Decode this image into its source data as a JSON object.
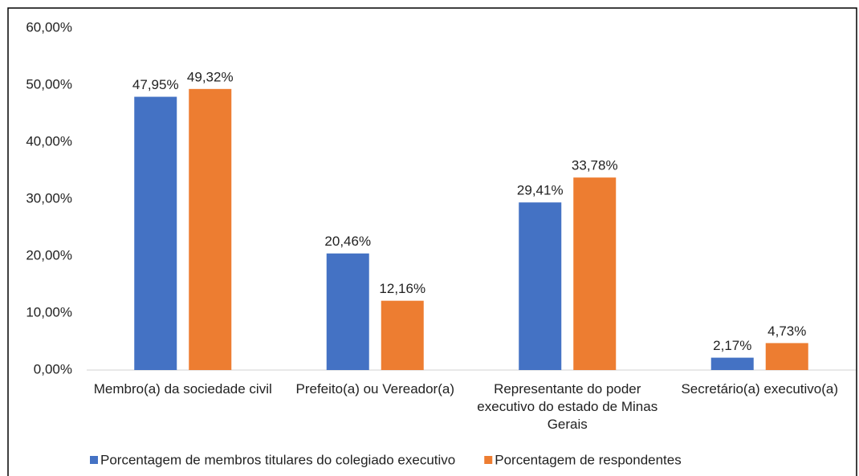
{
  "chart_data": {
    "type": "bar",
    "categories": [
      "Membro(a) da sociedade civil",
      "Prefeito(a) ou Vereador(a)",
      "Representante do poder executivo do estado de Minas Gerais",
      "Secretário(a) executivo(a)"
    ],
    "series": [
      {
        "name": "Porcentagem de membros titulares do colegiado executivo",
        "color": "#4472c4",
        "values": [
          47.95,
          20.46,
          29.41,
          2.17
        ],
        "value_labels": [
          "47,95%",
          "20,46%",
          "29,41%",
          "2,17%"
        ]
      },
      {
        "name": "Porcentagem de respondentes",
        "color": "#ed7d31",
        "values": [
          49.32,
          12.16,
          33.78,
          4.73
        ],
        "value_labels": [
          "49,32%",
          "12,16%",
          "33,78%",
          "4,73%"
        ]
      }
    ],
    "ylim": [
      0,
      60
    ],
    "yticks": [
      {
        "value": 0,
        "label": "0,00%"
      },
      {
        "value": 10,
        "label": "10,00%"
      },
      {
        "value": 20,
        "label": "20,00%"
      },
      {
        "value": 30,
        "label": "30,00%"
      },
      {
        "value": 40,
        "label": "40,00%"
      },
      {
        "value": 50,
        "label": "50,00%"
      },
      {
        "value": 60,
        "label": "60,00%"
      }
    ],
    "grid": false,
    "legend": "bottom"
  }
}
